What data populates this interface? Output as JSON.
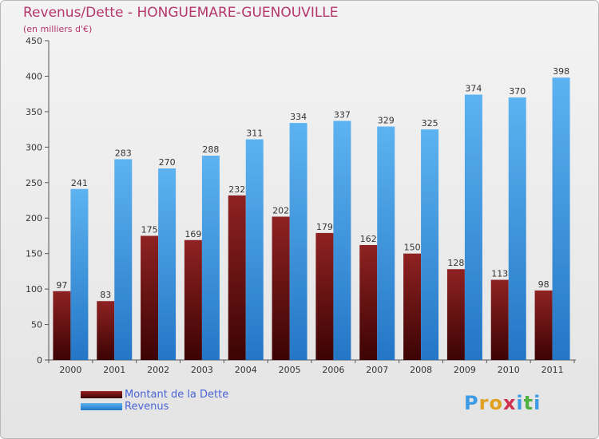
{
  "chart_data": {
    "type": "bar",
    "title": "Revenus/Dette - HONGUEMARE-GUENOUVILLE",
    "subtitle": "(en milliers d'€)",
    "categories": [
      "2000",
      "2001",
      "2002",
      "2003",
      "2004",
      "2005",
      "2006",
      "2007",
      "2008",
      "2009",
      "2010",
      "2011"
    ],
    "series": [
      {
        "name": "Montant de la Dette",
        "color": "#7a1414",
        "values": [
          97,
          83,
          175,
          169,
          232,
          202,
          179,
          162,
          150,
          128,
          113,
          98
        ]
      },
      {
        "name": "Revenus",
        "color": "#3d9be6",
        "values": [
          241,
          283,
          270,
          288,
          311,
          334,
          337,
          329,
          325,
          374,
          370,
          398
        ]
      }
    ],
    "ylim": [
      0,
      450
    ],
    "yticks": [
      0,
      50,
      100,
      150,
      200,
      250,
      300,
      350,
      400,
      450
    ],
    "grid": false,
    "legend_position": "bottom-left"
  },
  "brand": {
    "letters": [
      "P",
      "r",
      "o",
      "x",
      "i",
      "t",
      "i"
    ],
    "colors": [
      "#3d9be6",
      "#e0a020",
      "#e0a020",
      "#d03050",
      "#3d9be6",
      "#50b040",
      "#3d9be6"
    ]
  }
}
